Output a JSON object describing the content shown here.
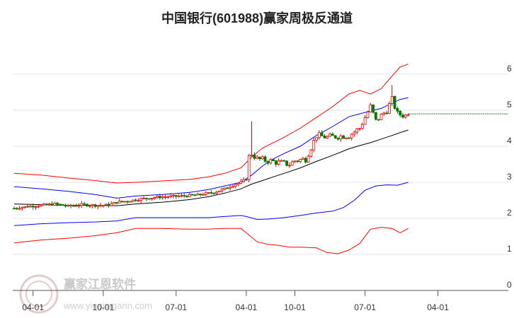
{
  "title": "中国银行(601988)赢家周极反通道",
  "watermark": {
    "text": "赢家江恩软件",
    "url": "www.yingjiagann.com"
  },
  "colors": {
    "up": "#e60000",
    "down": "#007a00",
    "red_band": "#ff0000",
    "blue_band": "#0000ff",
    "mid_line": "#000000",
    "last_price_line": "#008000",
    "grid": "#e6e6e6"
  },
  "chart_data": {
    "type": "candlestick-channel",
    "title": "中国银行(601988)赢家周极反通道",
    "y_ticks": [
      0,
      1,
      2,
      3,
      4,
      5,
      6
    ],
    "ylim": [
      0,
      6.4
    ],
    "x_tick_labels": [
      "04-01",
      "10-01",
      "07-01",
      "04-01",
      "10-01",
      "07-01",
      "04-01"
    ],
    "x_tick_index": [
      7,
      33,
      60,
      86,
      104,
      130,
      157
    ],
    "x_range": [
      0,
      160
    ],
    "last_price": 4.9,
    "series": [
      {
        "role": "upper-outer",
        "color": "red",
        "points": [
          [
            0,
            3.25
          ],
          [
            10,
            3.2
          ],
          [
            20,
            3.12
          ],
          [
            30,
            3.05
          ],
          [
            38,
            2.98
          ],
          [
            45,
            3.0
          ],
          [
            55,
            3.04
          ],
          [
            65,
            3.08
          ],
          [
            72,
            3.15
          ],
          [
            78,
            3.25
          ],
          [
            84,
            3.4
          ],
          [
            88,
            3.7
          ],
          [
            92,
            3.95
          ],
          [
            96,
            4.1
          ],
          [
            100,
            4.25
          ],
          [
            106,
            4.5
          ],
          [
            112,
            4.8
          ],
          [
            118,
            5.1
          ],
          [
            124,
            5.45
          ],
          [
            128,
            5.55
          ],
          [
            132,
            5.45
          ],
          [
            136,
            5.6
          ],
          [
            140,
            5.95
          ],
          [
            143,
            6.2
          ],
          [
            146,
            6.28
          ]
        ]
      },
      {
        "role": "upper-inner",
        "color": "blue",
        "points": [
          [
            0,
            2.88
          ],
          [
            10,
            2.82
          ],
          [
            20,
            2.75
          ],
          [
            30,
            2.66
          ],
          [
            38,
            2.56
          ],
          [
            45,
            2.62
          ],
          [
            55,
            2.66
          ],
          [
            65,
            2.72
          ],
          [
            72,
            2.8
          ],
          [
            78,
            2.9
          ],
          [
            84,
            3.0
          ],
          [
            88,
            3.2
          ],
          [
            92,
            3.45
          ],
          [
            96,
            3.65
          ],
          [
            100,
            3.8
          ],
          [
            106,
            4.0
          ],
          [
            112,
            4.3
          ],
          [
            118,
            4.55
          ],
          [
            124,
            4.82
          ],
          [
            128,
            4.9
          ],
          [
            132,
            4.98
          ],
          [
            136,
            5.05
          ],
          [
            140,
            5.2
          ],
          [
            143,
            5.3
          ],
          [
            146,
            5.35
          ]
        ]
      },
      {
        "role": "middle",
        "color": "black",
        "points": [
          [
            0,
            2.4
          ],
          [
            10,
            2.38
          ],
          [
            20,
            2.36
          ],
          [
            30,
            2.36
          ],
          [
            38,
            2.35
          ],
          [
            45,
            2.4
          ],
          [
            55,
            2.45
          ],
          [
            65,
            2.52
          ],
          [
            72,
            2.6
          ],
          [
            78,
            2.7
          ],
          [
            84,
            2.82
          ],
          [
            88,
            2.95
          ],
          [
            92,
            3.05
          ],
          [
            96,
            3.15
          ],
          [
            100,
            3.25
          ],
          [
            106,
            3.4
          ],
          [
            112,
            3.58
          ],
          [
            118,
            3.75
          ],
          [
            124,
            3.93
          ],
          [
            128,
            4.02
          ],
          [
            132,
            4.1
          ],
          [
            136,
            4.2
          ],
          [
            140,
            4.3
          ],
          [
            143,
            4.38
          ],
          [
            146,
            4.45
          ]
        ]
      },
      {
        "role": "lower-inner",
        "color": "blue",
        "points": [
          [
            0,
            1.8
          ],
          [
            10,
            1.85
          ],
          [
            20,
            1.88
          ],
          [
            30,
            1.9
          ],
          [
            38,
            1.93
          ],
          [
            45,
            2.02
          ],
          [
            55,
            2.02
          ],
          [
            65,
            2.02
          ],
          [
            72,
            2.02
          ],
          [
            78,
            2.05
          ],
          [
            84,
            2.08
          ],
          [
            86,
            2.05
          ],
          [
            90,
            1.97
          ],
          [
            94,
            1.98
          ],
          [
            100,
            2.02
          ],
          [
            106,
            2.08
          ],
          [
            112,
            2.15
          ],
          [
            118,
            2.2
          ],
          [
            122,
            2.3
          ],
          [
            126,
            2.5
          ],
          [
            130,
            2.78
          ],
          [
            134,
            2.9
          ],
          [
            138,
            2.93
          ],
          [
            142,
            2.92
          ],
          [
            146,
            3.0
          ]
        ]
      },
      {
        "role": "lower-outer",
        "color": "red",
        "points": [
          [
            0,
            1.32
          ],
          [
            10,
            1.4
          ],
          [
            20,
            1.45
          ],
          [
            30,
            1.52
          ],
          [
            38,
            1.6
          ],
          [
            45,
            1.72
          ],
          [
            55,
            1.72
          ],
          [
            65,
            1.7
          ],
          [
            72,
            1.7
          ],
          [
            78,
            1.72
          ],
          [
            84,
            1.72
          ],
          [
            86,
            1.6
          ],
          [
            90,
            1.35
          ],
          [
            94,
            1.28
          ],
          [
            98,
            1.25
          ],
          [
            102,
            1.2
          ],
          [
            106,
            1.2
          ],
          [
            112,
            1.18
          ],
          [
            116,
            1.05
          ],
          [
            120,
            1.02
          ],
          [
            124,
            1.12
          ],
          [
            128,
            1.3
          ],
          [
            132,
            1.7
          ],
          [
            136,
            1.75
          ],
          [
            140,
            1.72
          ],
          [
            143,
            1.6
          ],
          [
            146,
            1.72
          ]
        ]
      },
      {
        "role": "price",
        "color": "red/green candles",
        "points": [
          [
            0,
            2.28
          ],
          [
            5,
            2.33
          ],
          [
            10,
            2.36
          ],
          [
            15,
            2.4
          ],
          [
            20,
            2.34
          ],
          [
            25,
            2.38
          ],
          [
            30,
            2.36
          ],
          [
            35,
            2.37
          ],
          [
            38,
            2.45
          ],
          [
            42,
            2.48
          ],
          [
            48,
            2.55
          ],
          [
            55,
            2.6
          ],
          [
            62,
            2.62
          ],
          [
            68,
            2.65
          ],
          [
            74,
            2.72
          ],
          [
            78,
            2.82
          ],
          [
            82,
            2.95
          ],
          [
            84,
            3.0
          ],
          [
            86,
            3.1
          ],
          [
            87,
            3.7
          ],
          [
            88,
            3.8
          ],
          [
            90,
            3.65
          ],
          [
            94,
            3.6
          ],
          [
            98,
            3.55
          ],
          [
            102,
            3.5
          ],
          [
            104,
            3.6
          ],
          [
            108,
            3.65
          ],
          [
            112,
            4.3
          ],
          [
            116,
            4.25
          ],
          [
            120,
            4.28
          ],
          [
            124,
            4.3
          ],
          [
            128,
            4.5
          ],
          [
            132,
            5.1
          ],
          [
            134,
            4.7
          ],
          [
            138,
            5.0
          ],
          [
            140,
            5.3
          ],
          [
            142,
            4.9
          ],
          [
            145,
            4.85
          ],
          [
            146,
            4.95
          ]
        ]
      }
    ]
  }
}
